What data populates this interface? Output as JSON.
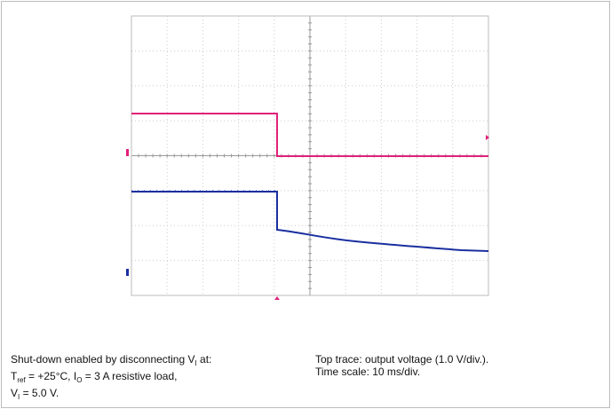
{
  "caption": {
    "left": [
      [
        {
          "t": "Shut-down enabled by disconnecting V"
        },
        {
          "t": "I",
          "sub": true
        },
        {
          "t": " at:"
        }
      ],
      [
        {
          "t": "T"
        },
        {
          "t": "ref",
          "sub": true
        },
        {
          "t": " = +25°C, I"
        },
        {
          "t": "O",
          "sub": true
        },
        {
          "t": " = 3 A resistive load,"
        }
      ],
      [
        {
          "t": "V"
        },
        {
          "t": "I",
          "sub": true
        },
        {
          "t": " = 5.0 V."
        }
      ]
    ],
    "right": [
      [
        {
          "t": "Top trace: output voltage (1.0 V/div.)."
        }
      ],
      [
        {
          "t": "Time scale: 10 ms/div."
        }
      ]
    ]
  }
}
